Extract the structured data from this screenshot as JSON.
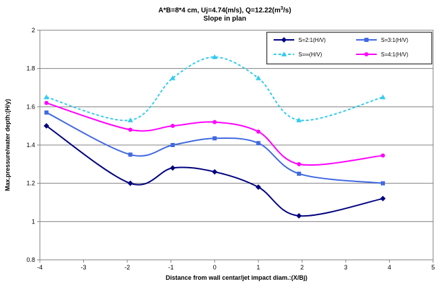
{
  "chart_data": {
    "type": "line",
    "title_line1": "A*B=8*4 cm, Uj=4.74(m/s), Q=12.22(m",
    "title_sup": "3",
    "title_line1_end": "/s)",
    "title_line2": "Slope in plan",
    "xlabel": "Distance from wall centar/jet impact diam.:(X/Bj)",
    "ylabel": "Max.pressure/water depth:(H/y)",
    "xlim": [
      -4,
      5
    ],
    "ylim": [
      0.8,
      2
    ],
    "x_ticks": [
      -4,
      -3,
      -2,
      -1,
      0,
      1,
      2,
      3,
      4,
      5
    ],
    "y_ticks": [
      0.8,
      1,
      1.2,
      1.4,
      1.6,
      1.8,
      2
    ],
    "y_tick_labels": [
      "0.8",
      "1",
      "1.2",
      "1.4",
      "1.6",
      "1.8",
      "2"
    ],
    "x_tick_labels": [
      "-4",
      "-3",
      "-2",
      "-1",
      "0",
      "1",
      "2",
      "3",
      "4",
      "5"
    ],
    "grid": "horizontal",
    "legend_position": "top-right",
    "x": [
      -3.85,
      -1.93,
      -0.96,
      0,
      1,
      1.93,
      3.85
    ],
    "series": [
      {
        "name": "S=2:1(H/V)",
        "color": "#000080",
        "marker": "diamond",
        "dash": false,
        "values": [
          1.5,
          1.2,
          1.28,
          1.26,
          1.18,
          1.03,
          1.12
        ]
      },
      {
        "name": "S=3:1(H/V)",
        "color": "#4169E1",
        "marker": "square",
        "dash": false,
        "values": [
          1.57,
          1.35,
          1.4,
          1.435,
          1.41,
          1.25,
          1.2
        ]
      },
      {
        "name": "S=∞(H/V)",
        "color": "#33CCEE",
        "marker": "triangle",
        "dash": true,
        "values": [
          1.65,
          1.53,
          1.75,
          1.86,
          1.75,
          1.53,
          1.65
        ]
      },
      {
        "name": "S=4:1(H/V)",
        "color": "#FF00FF",
        "marker": "circle",
        "dash": false,
        "values": [
          1.62,
          1.48,
          1.5,
          1.52,
          1.47,
          1.3,
          1.345
        ]
      }
    ]
  }
}
